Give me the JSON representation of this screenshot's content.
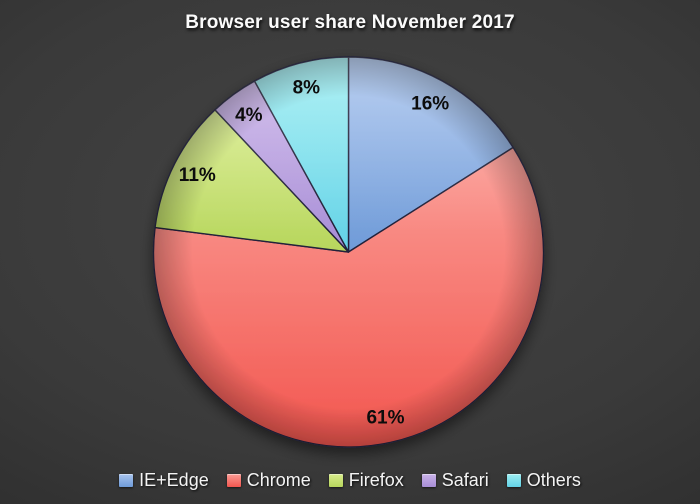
{
  "title": "Browser user share November 2017",
  "chart_data": {
    "type": "pie",
    "title": "Browser user share November 2017",
    "categories": [
      "IE+Edge",
      "Chrome",
      "Firefox",
      "Safari",
      "Others"
    ],
    "values": [
      16,
      61,
      11,
      4,
      8
    ],
    "labels": [
      "16%",
      "61%",
      "11%",
      "4%",
      "8%"
    ],
    "start_angle_deg": 0,
    "direction": "clockwise",
    "legend_position": "bottom",
    "label_position": "inside",
    "colors": [
      {
        "name": "blue",
        "light": "#a9c4ee",
        "dark": "#6f9bd8"
      },
      {
        "name": "salmon",
        "light": "#fb9d96",
        "dark": "#f2564f"
      },
      {
        "name": "green",
        "light": "#d8ec8c",
        "dark": "#b7d65d"
      },
      {
        "name": "purple",
        "light": "#c9b2e8",
        "dark": "#a78dd6"
      },
      {
        "name": "cyan",
        "light": "#9deef2",
        "dark": "#63d2e7"
      }
    ],
    "slice_outline_color": "#22223a",
    "label_color": "#0c0c0c",
    "background_color": "#3a3a3a",
    "title_color": "#fbfbfb",
    "legend_text_color": "#f4f4f4"
  }
}
